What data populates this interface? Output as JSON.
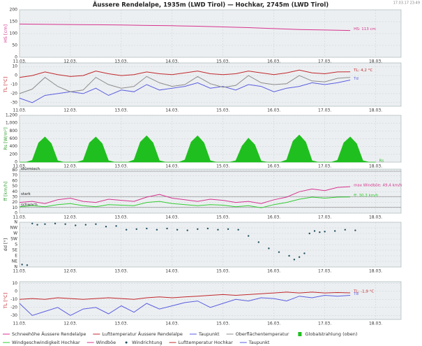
{
  "title": "Äussere Rendelalpe, 1935m (LWD Tirol) — Hochkar, 2745m (LWD Tirol)",
  "timestamp": "17.03.17 23:49",
  "chart_data": [
    {
      "type": "line",
      "ylabel": "HS [cm]",
      "ylabel_color": "#d6338f",
      "xlim": [
        0,
        7.5
      ],
      "xticks": [
        {
          "value": 0,
          "label": "11.03."
        },
        {
          "value": 1,
          "label": "12.03."
        },
        {
          "value": 2,
          "label": "13.03."
        },
        {
          "value": 3,
          "label": "14.03."
        },
        {
          "value": 4,
          "label": "15.03."
        },
        {
          "value": 5,
          "label": "16.03."
        },
        {
          "value": 6,
          "label": "17.03."
        },
        {
          "value": 7,
          "label": "18.03."
        }
      ],
      "ylim": [
        0,
        200
      ],
      "yticks": [
        0,
        50,
        100,
        150,
        200
      ],
      "grid": true,
      "x": [
        0,
        0.5,
        1,
        1.5,
        2,
        2.5,
        3,
        3.5,
        4,
        4.5,
        5,
        5.5,
        6,
        6.5
      ],
      "series": [
        {
          "name": "Schneehöhe Äussere Rendelalpe",
          "color": "#d6338f",
          "label": "HS: 113 cm",
          "values": [
            140,
            139,
            138,
            137,
            136,
            134,
            133,
            131,
            128,
            125,
            121,
            117,
            115,
            113
          ]
        }
      ]
    },
    {
      "type": "line",
      "ylabel": "TL [°C]",
      "ylabel_color": "#c0282d",
      "xlim": [
        0,
        7.5
      ],
      "xticks": [
        {
          "value": 0,
          "label": "11.03."
        },
        {
          "value": 1,
          "label": "12.03."
        },
        {
          "value": 2,
          "label": "13.03."
        },
        {
          "value": 3,
          "label": "14.03."
        },
        {
          "value": 4,
          "label": "15.03."
        },
        {
          "value": 5,
          "label": "16.03."
        },
        {
          "value": 6,
          "label": "17.03."
        },
        {
          "value": 7,
          "label": "18.03."
        }
      ],
      "ylim": [
        -34,
        14
      ],
      "yticks": [
        -30,
        -20,
        -10,
        0,
        10
      ],
      "grid": true,
      "x": [
        0,
        0.25,
        0.5,
        0.75,
        1,
        1.25,
        1.5,
        1.75,
        2,
        2.25,
        2.5,
        2.75,
        3,
        3.25,
        3.5,
        3.75,
        4,
        4.25,
        4.5,
        4.75,
        5,
        5.25,
        5.5,
        5.75,
        6,
        6.25,
        6.5
      ],
      "series": [
        {
          "name": "Lufttemperatur Äussere Rendelalpe",
          "color": "#c0282d",
          "label": "TL: 4,2 °C",
          "values": [
            -2,
            0,
            4,
            1,
            -1,
            0,
            5,
            2,
            0,
            1,
            4,
            2,
            1,
            3,
            5,
            2,
            1,
            2,
            5,
            3,
            1,
            3,
            6,
            3,
            2,
            4,
            4.2
          ]
        },
        {
          "name": "Taupunkt",
          "color": "#5a5ee0",
          "label": "Td",
          "values": [
            -25,
            -30,
            -22,
            -20,
            -18,
            -20,
            -14,
            -22,
            -16,
            -18,
            -10,
            -16,
            -14,
            -12,
            -8,
            -14,
            -12,
            -16,
            -10,
            -12,
            -18,
            -14,
            -12,
            -8,
            -10,
            -8,
            -5
          ]
        },
        {
          "name": "Oberflächentemperatur",
          "color": "#8c8c8c",
          "values": [
            -20,
            -15,
            -2,
            -12,
            -18,
            -16,
            -2,
            -10,
            -14,
            -12,
            -1,
            -8,
            -12,
            -10,
            -1,
            -9,
            -13,
            -11,
            0,
            -8,
            -10,
            -9,
            0,
            -6,
            -7,
            -3,
            -2
          ]
        }
      ]
    },
    {
      "type": "area",
      "ylabel": "Rs [W/m²]",
      "ylabel_color": "#2e9e2e",
      "xlim": [
        0,
        7.5
      ],
      "xticks": [
        {
          "value": 0,
          "label": "11.03."
        },
        {
          "value": 1,
          "label": "12.03."
        },
        {
          "value": 2,
          "label": "13.03."
        },
        {
          "value": 3,
          "label": "14.03."
        },
        {
          "value": 4,
          "label": "15.03."
        },
        {
          "value": 5,
          "label": "16.03."
        },
        {
          "value": 6,
          "label": "17.03."
        },
        {
          "value": 7,
          "label": "18.03."
        }
      ],
      "ylim": [
        0,
        1200
      ],
      "yticks": [
        0,
        200,
        400,
        600,
        800,
        {
          "value": 1000,
          "label": "1,000"
        },
        {
          "value": 1200,
          "label": "1,200"
        }
      ],
      "grid": true,
      "x": [
        0,
        0.125,
        0.25,
        0.375,
        0.5,
        0.625,
        0.75,
        0.875,
        1,
        1.125,
        1.25,
        1.375,
        1.5,
        1.625,
        1.75,
        1.875,
        2,
        2.125,
        2.25,
        2.375,
        2.5,
        2.625,
        2.75,
        2.875,
        3,
        3.125,
        3.25,
        3.375,
        3.5,
        3.625,
        3.75,
        3.875,
        4,
        4.125,
        4.25,
        4.375,
        4.5,
        4.625,
        4.75,
        4.875,
        5,
        5.125,
        5.25,
        5.375,
        5.5,
        5.625,
        5.75,
        5.875,
        6,
        6.125,
        6.25,
        6.375,
        6.5,
        6.625,
        6.75,
        6.875,
        7
      ],
      "series": [
        {
          "name": "Globalstrahlung (oben)",
          "color": "#1fbf1f",
          "label": "Rs",
          "values": [
            0,
            0,
            50,
            500,
            650,
            480,
            40,
            0,
            0,
            0,
            50,
            500,
            650,
            480,
            40,
            0,
            0,
            0,
            60,
            520,
            680,
            500,
            40,
            0,
            0,
            0,
            60,
            520,
            680,
            500,
            40,
            0,
            0,
            0,
            40,
            420,
            620,
            450,
            30,
            0,
            0,
            0,
            60,
            540,
            700,
            520,
            40,
            0,
            0,
            0,
            50,
            500,
            650,
            480,
            40,
            0,
            0
          ]
        }
      ]
    },
    {
      "type": "line",
      "ylabel": "ff [km/h]",
      "ylabel_color": "#2e9e2e",
      "xlim": [
        0,
        7.5
      ],
      "xticks": [
        {
          "value": 0,
          "label": "11.03."
        },
        {
          "value": 1,
          "label": "12.03."
        },
        {
          "value": 2,
          "label": "13.03."
        },
        {
          "value": 3,
          "label": "14.03."
        },
        {
          "value": 4,
          "label": "15.03."
        },
        {
          "value": 5,
          "label": "16.03."
        },
        {
          "value": 6,
          "label": "17.03."
        },
        {
          "value": 7,
          "label": "18.03."
        }
      ],
      "ylim": [
        0,
        82
      ],
      "yticks": [
        0,
        10,
        20,
        30,
        40,
        50,
        60,
        70,
        80
      ],
      "grid": true,
      "levels": [
        {
          "value": 78,
          "label": "stürmisch"
        },
        {
          "value": 31,
          "label": "stark"
        },
        {
          "value": 11,
          "label": "schwach"
        }
      ],
      "x": [
        0,
        0.25,
        0.5,
        0.75,
        1,
        1.25,
        1.5,
        1.75,
        2,
        2.25,
        2.5,
        2.75,
        3,
        3.25,
        3.5,
        3.75,
        4,
        4.25,
        4.5,
        4.75,
        5,
        5.25,
        5.5,
        5.75,
        6,
        6.25,
        6.5
      ],
      "series": [
        {
          "name": "Windgeschwindigkeit Hochkar",
          "color": "#33cc33",
          "label": "ff: 30,3 km/h",
          "values": [
            12,
            14,
            12,
            16,
            18,
            14,
            12,
            16,
            15,
            14,
            20,
            22,
            18,
            16,
            14,
            16,
            15,
            12,
            14,
            10,
            16,
            20,
            26,
            30,
            28,
            30,
            30.3
          ]
        },
        {
          "name": "Windböe",
          "color": "#d6338f",
          "label": "max Windböe: 49,4 km/h",
          "values": [
            20,
            22,
            18,
            25,
            28,
            22,
            20,
            26,
            24,
            22,
            30,
            35,
            28,
            25,
            22,
            26,
            24,
            20,
            22,
            18,
            25,
            30,
            40,
            45,
            42,
            48,
            49.4
          ]
        }
      ]
    },
    {
      "type": "scatter",
      "ylabel": "dd [°]",
      "ylabel_color": "#333333",
      "xlim": [
        0,
        7.5
      ],
      "xticks": [
        {
          "value": 0,
          "label": "11.03."
        },
        {
          "value": 1,
          "label": "12.03."
        },
        {
          "value": 2,
          "label": "13.03."
        },
        {
          "value": 3,
          "label": "14.03."
        },
        {
          "value": 4,
          "label": "15.03."
        },
        {
          "value": 5,
          "label": "16.03."
        },
        {
          "value": 6,
          "label": "17.03."
        },
        {
          "value": 7,
          "label": "18.03."
        }
      ],
      "ylim": [
        0,
        360
      ],
      "yticks": [
        {
          "value": 0,
          "label": "N"
        },
        {
          "value": 45,
          "label": "NE"
        },
        {
          "value": 90,
          "label": "E"
        },
        {
          "value": 135,
          "label": "SE"
        },
        {
          "value": 180,
          "label": "S"
        },
        {
          "value": 225,
          "label": "SW"
        },
        {
          "value": 270,
          "label": "W"
        },
        {
          "value": 315,
          "label": "NW"
        },
        {
          "value": 360,
          "label": "N"
        }
      ],
      "grid": true,
      "x": [
        0.05,
        0.15,
        0.25,
        0.35,
        0.5,
        0.7,
        0.9,
        1.1,
        1.3,
        1.5,
        1.7,
        1.9,
        2.1,
        2.3,
        2.5,
        2.7,
        2.9,
        3.1,
        3.3,
        3.5,
        3.7,
        3.9,
        4.1,
        4.3,
        4.5,
        4.7,
        4.9,
        5.1,
        5.3,
        5.4,
        5.5,
        5.6,
        5.7,
        5.8,
        5.9,
        6.0,
        6.2,
        6.4,
        6.6
      ],
      "series": [
        {
          "name": "Windrichtung",
          "color": "#1f4e5f",
          "values": [
            20,
            15,
            350,
            340,
            345,
            350,
            345,
            335,
            340,
            345,
            325,
            330,
            300,
            305,
            310,
            300,
            310,
            300,
            295,
            305,
            310,
            300,
            305,
            300,
            250,
            200,
            150,
            120,
            90,
            60,
            80,
            110,
            270,
            290,
            280,
            285,
            290,
            300,
            295
          ]
        }
      ]
    },
    {
      "type": "line",
      "ylabel": "TL [°C]",
      "ylabel_color": "#c0282d",
      "xlim": [
        0,
        7.5
      ],
      "xticks": [
        {
          "value": 0,
          "label": "11.03."
        },
        {
          "value": 1,
          "label": "12.03."
        },
        {
          "value": 2,
          "label": "13.03."
        },
        {
          "value": 3,
          "label": "14.03."
        },
        {
          "value": 4,
          "label": "15.03."
        },
        {
          "value": 5,
          "label": "16.03."
        },
        {
          "value": 6,
          "label": "17.03."
        },
        {
          "value": 7,
          "label": "18.03."
        }
      ],
      "ylim": [
        -35,
        12
      ],
      "yticks": [
        -30,
        -20,
        -10,
        0,
        10
      ],
      "grid": true,
      "x": [
        0,
        0.25,
        0.5,
        0.75,
        1,
        1.25,
        1.5,
        1.75,
        2,
        2.25,
        2.5,
        2.75,
        3,
        3.25,
        3.5,
        3.75,
        4,
        4.25,
        4.5,
        4.75,
        5,
        5.25,
        5.5,
        5.75,
        6,
        6.25,
        6.5
      ],
      "series": [
        {
          "name": "Lufttemperatur Hochkar",
          "color": "#c0282d",
          "label": "TL: -1,9 °C",
          "values": [
            -10,
            -9,
            -10,
            -8,
            -9,
            -10,
            -9,
            -8,
            -9,
            -10,
            -8,
            -7,
            -8,
            -7,
            -6,
            -5,
            -4,
            -5,
            -4,
            -3,
            -2,
            -1,
            -2,
            -1,
            -2,
            -1.5,
            -1.9
          ]
        },
        {
          "name": "Taupunkt",
          "color": "#5a5ee0",
          "label": "Td",
          "values": [
            -15,
            -30,
            -25,
            -20,
            -30,
            -22,
            -20,
            -28,
            -18,
            -26,
            -15,
            -22,
            -18,
            -14,
            -12,
            -20,
            -15,
            -10,
            -12,
            -8,
            -9,
            -12,
            -6,
            -8,
            -5,
            -6,
            -5
          ]
        }
      ]
    }
  ]
}
